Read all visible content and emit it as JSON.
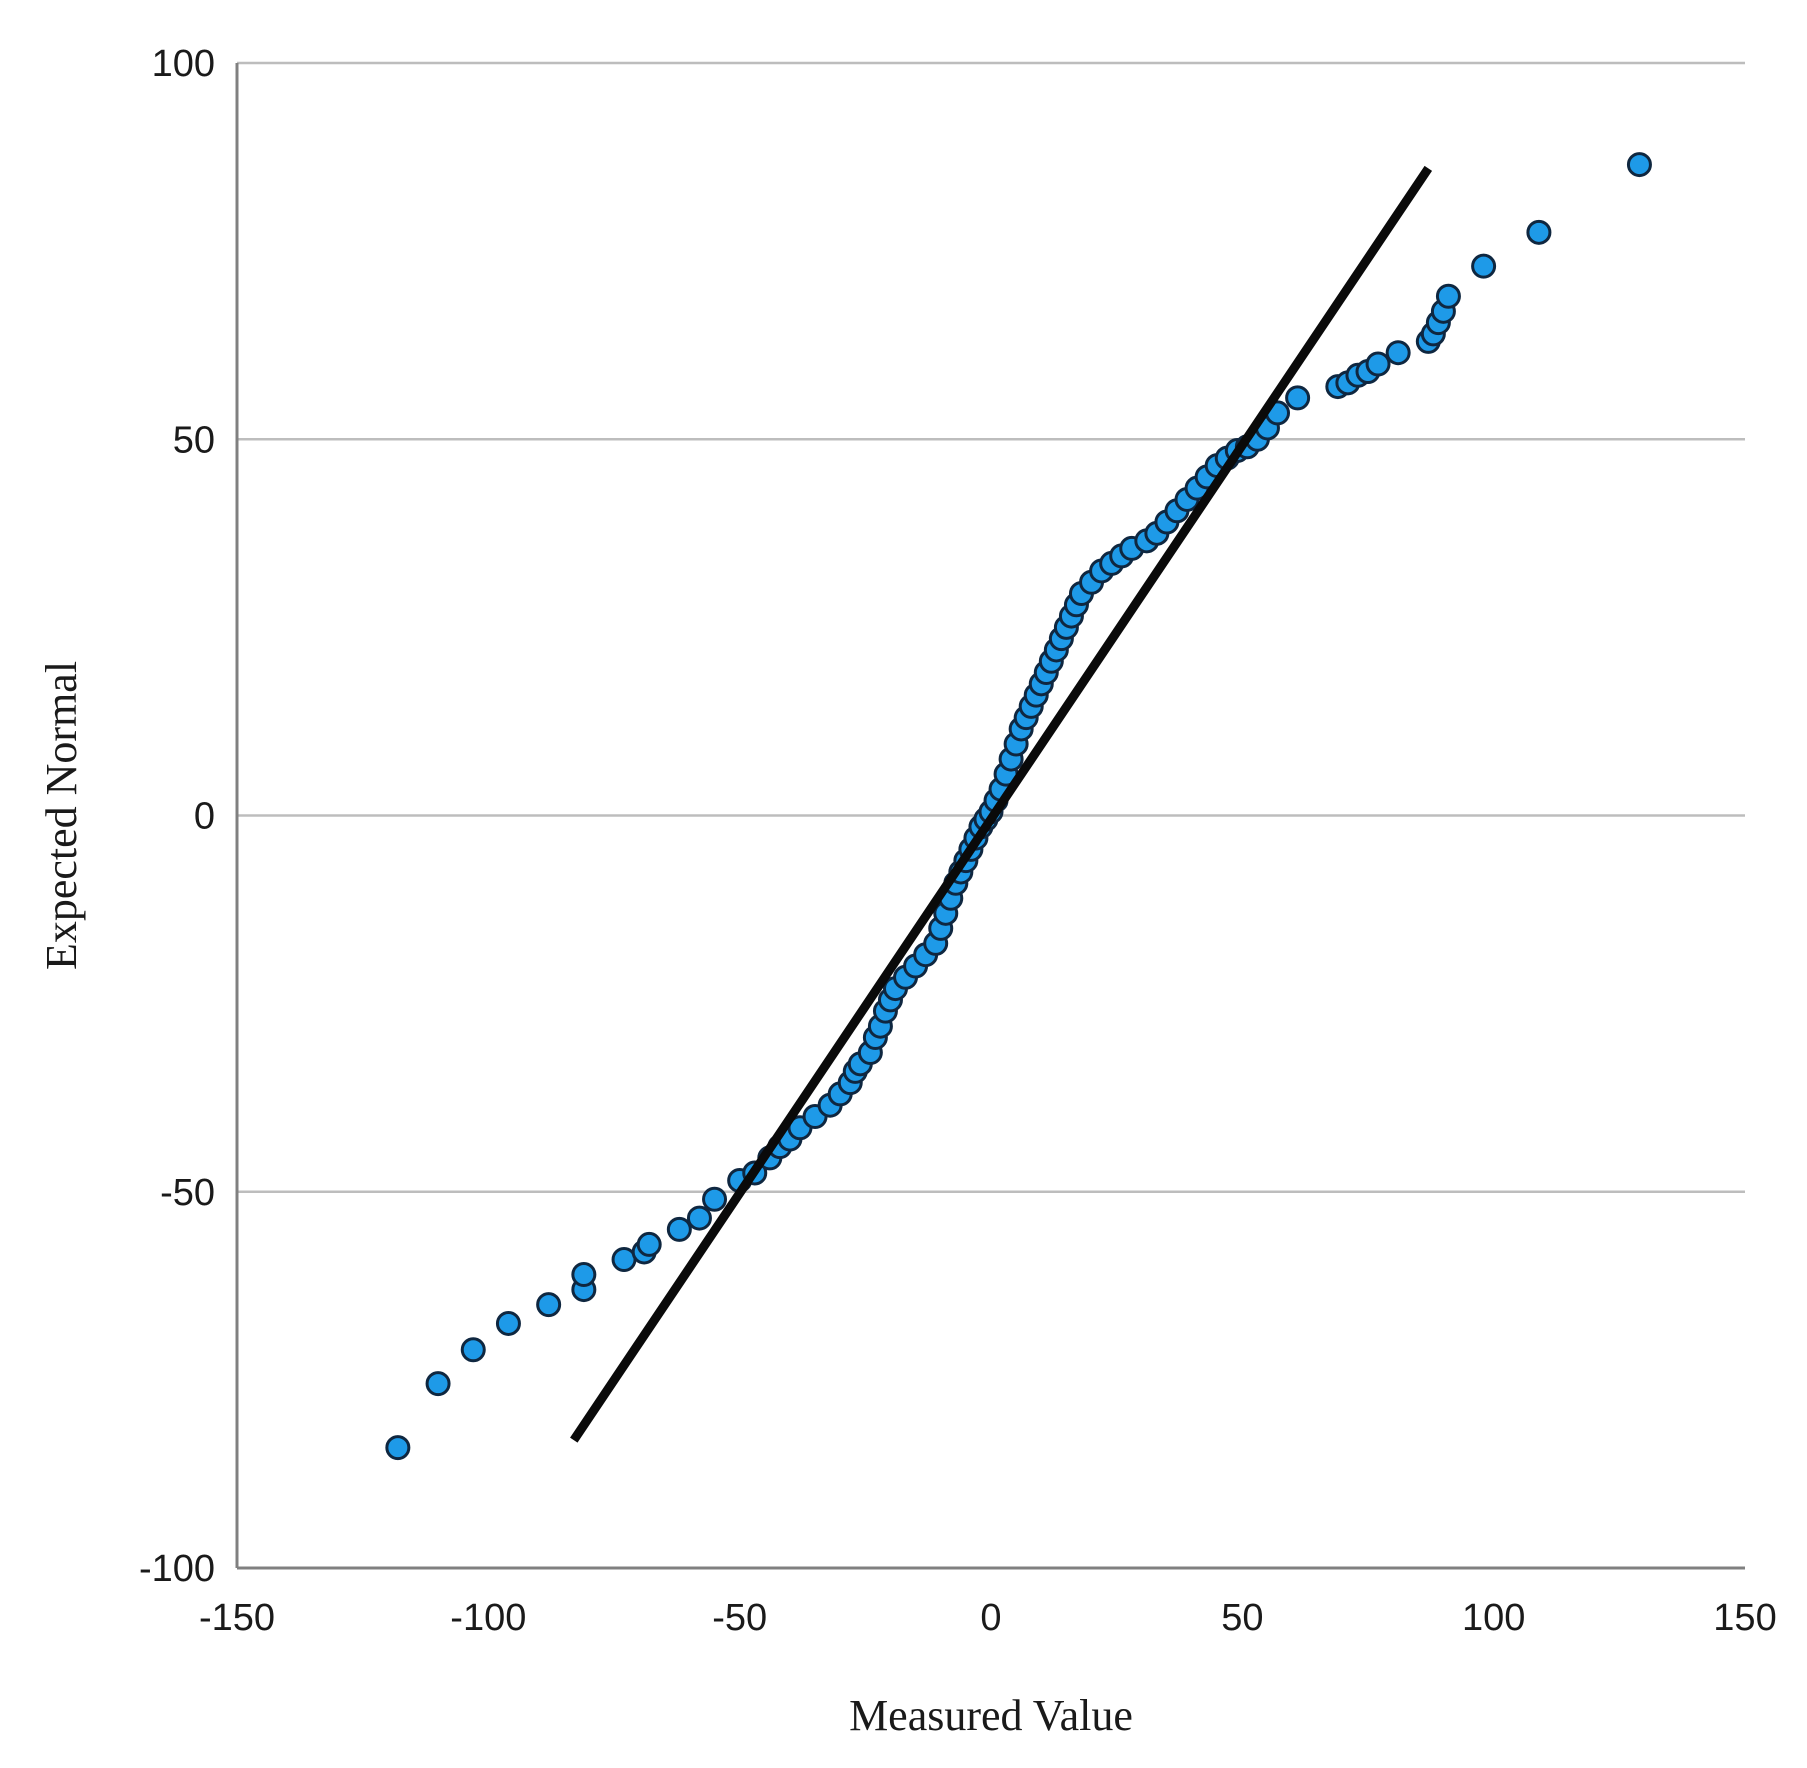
{
  "chart_data": {
    "type": "scatter",
    "title": "",
    "xlabel": "Measured Value",
    "ylabel": "Expected Normal",
    "xlim": [
      -150,
      150
    ],
    "ylim": [
      -100,
      100
    ],
    "x_ticks": [
      -150,
      -100,
      -50,
      0,
      50,
      100,
      150
    ],
    "y_ticks": [
      -100,
      -50,
      0,
      50,
      100
    ],
    "x_tick_labels": [
      "-150",
      "-100",
      "-50",
      "0",
      "50",
      "100",
      "150"
    ],
    "y_tick_labels": [
      "-100",
      "-50",
      "0",
      "50",
      "100"
    ],
    "grid": "horizontal",
    "legend": "none",
    "point_color": "#1e9ae8",
    "point_edge_color": "#0f2740",
    "line_color": "#0a0a0a",
    "reference_line": {
      "x": [
        -83,
        87
      ],
      "y": [
        -83,
        86
      ]
    },
    "points": [
      [
        -118,
        -84
      ],
      [
        -110,
        -75.5
      ],
      [
        -103,
        -71
      ],
      [
        -96,
        -67.5
      ],
      [
        -88,
        -65
      ],
      [
        -81,
        -63
      ],
      [
        -81,
        -61
      ],
      [
        -73,
        -59
      ],
      [
        -69,
        -58
      ],
      [
        -68,
        -57
      ],
      [
        -62,
        -55
      ],
      [
        -58,
        -53.5
      ],
      [
        -55,
        -51
      ],
      [
        -50,
        -48.5
      ],
      [
        -47,
        -47.5
      ],
      [
        -44,
        -45.5
      ],
      [
        -42,
        -44
      ],
      [
        -40,
        -43
      ],
      [
        -38,
        -41.5
      ],
      [
        -35,
        -40
      ],
      [
        -32,
        -38.5
      ],
      [
        -30,
        -37
      ],
      [
        -28,
        -35.5
      ],
      [
        -27,
        -34
      ],
      [
        -26,
        -33
      ],
      [
        -24,
        -31.5
      ],
      [
        -23,
        -29.5
      ],
      [
        -22,
        -28
      ],
      [
        -21,
        -26
      ],
      [
        -20,
        -24.5
      ],
      [
        -19,
        -23
      ],
      [
        -17,
        -21.5
      ],
      [
        -15,
        -20
      ],
      [
        -13,
        -18.5
      ],
      [
        -11,
        -17
      ],
      [
        -10,
        -15
      ],
      [
        -9,
        -13
      ],
      [
        -8,
        -11
      ],
      [
        -7,
        -9
      ],
      [
        -6,
        -7.5
      ],
      [
        -5,
        -6
      ],
      [
        -4,
        -4.5
      ],
      [
        -3,
        -3
      ],
      [
        -2,
        -1.5
      ],
      [
        -1,
        -0.5
      ],
      [
        0,
        0.5
      ],
      [
        1,
        2
      ],
      [
        2,
        3.5
      ],
      [
        3,
        5.5
      ],
      [
        4,
        7.5
      ],
      [
        5,
        9.5
      ],
      [
        6,
        11.5
      ],
      [
        7,
        13
      ],
      [
        8,
        14.5
      ],
      [
        9,
        16
      ],
      [
        10,
        17.5
      ],
      [
        11,
        19
      ],
      [
        12,
        20.5
      ],
      [
        13,
        22
      ],
      [
        14,
        23.5
      ],
      [
        15,
        25
      ],
      [
        16,
        26.5
      ],
      [
        17,
        28
      ],
      [
        18,
        29.5
      ],
      [
        20,
        31
      ],
      [
        22,
        32.5
      ],
      [
        24,
        33.5
      ],
      [
        26,
        34.5
      ],
      [
        28,
        35.5
      ],
      [
        31,
        36.5
      ],
      [
        33,
        37.5
      ],
      [
        35,
        39
      ],
      [
        37,
        40.5
      ],
      [
        39,
        42
      ],
      [
        41,
        43.5
      ],
      [
        43,
        45
      ],
      [
        45,
        46.5
      ],
      [
        47,
        47.5
      ],
      [
        49,
        48.5
      ],
      [
        51,
        49
      ],
      [
        53,
        50
      ],
      [
        55,
        51.5
      ],
      [
        57,
        53.5
      ],
      [
        61,
        55.5
      ],
      [
        69,
        57
      ],
      [
        71,
        57.5
      ],
      [
        73,
        58.5
      ],
      [
        75,
        59
      ],
      [
        77,
        60
      ],
      [
        81,
        61.5
      ],
      [
        87,
        63
      ],
      [
        88,
        64
      ],
      [
        89,
        65.5
      ],
      [
        90,
        67
      ],
      [
        91,
        69
      ],
      [
        98,
        73
      ],
      [
        109,
        77.5
      ],
      [
        129,
        86.5
      ]
    ]
  }
}
